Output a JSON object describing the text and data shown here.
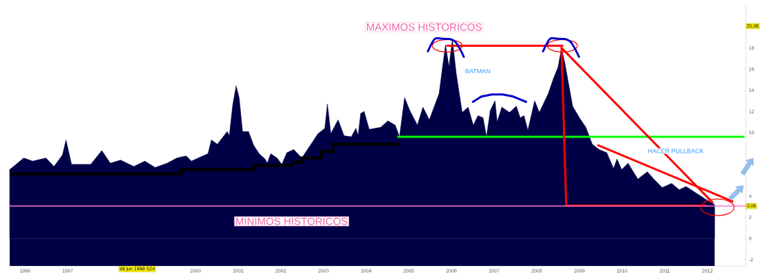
{
  "chart_data": {
    "type": "area",
    "xlim": [
      1995.64,
      2012.9
    ],
    "ylim": [
      -2.6,
      22.2
    ],
    "xticks": [
      1996,
      1997,
      2000,
      2001,
      2002,
      2003,
      2004,
      2005,
      2006,
      2007,
      2008,
      2009,
      2010,
      2011,
      2012
    ],
    "yticks": [
      -2,
      0,
      2,
      4,
      {
        "value": 6,
        "label": null
      },
      {
        "value": 8,
        "label": null
      },
      10,
      12,
      14,
      16,
      18
    ],
    "series": [
      {
        "color": "#000046",
        "x": [
          1995.64,
          1995.97,
          1996.18,
          1996.49,
          1996.68,
          1996.88,
          1996.96,
          1997.09,
          1997.32,
          1997.54,
          1997.8,
          1998.0,
          1998.24,
          1998.55,
          1998.81,
          1999.05,
          1999.33,
          1999.56,
          1999.78,
          1999.9,
          2000.06,
          2000.29,
          2000.37,
          2000.51,
          2000.74,
          2000.79,
          2000.87,
          2000.95,
          2001.02,
          2001.1,
          2001.24,
          2001.36,
          2001.49,
          2001.63,
          2001.68,
          2001.76,
          2001.91,
          2002.02,
          2002.14,
          2002.3,
          2002.49,
          2002.69,
          2002.87,
          2003.03,
          2003.09,
          2003.17,
          2003.34,
          2003.48,
          2003.65,
          2003.76,
          2003.81,
          2003.87,
          2003.95,
          2004.07,
          2004.34,
          2004.51,
          2004.68,
          2004.78,
          2004.9,
          2005.02,
          2005.2,
          2005.33,
          2005.48,
          2005.59,
          2005.71,
          2005.79,
          2005.86,
          2005.94,
          2006.02,
          2006.11,
          2006.25,
          2006.39,
          2006.51,
          2006.62,
          2006.74,
          2006.82,
          2006.91,
          2007.02,
          2007.07,
          2007.18,
          2007.36,
          2007.52,
          2007.61,
          2007.7,
          2007.79,
          2007.95,
          2008.06,
          2008.27,
          2008.39,
          2008.5,
          2008.58,
          2008.66,
          2008.84,
          2009.0,
          2009.15,
          2009.3,
          2009.46,
          2009.64,
          2009.8,
          2009.88,
          2009.99,
          2010.14,
          2010.37,
          2010.59,
          2010.77,
          2010.94,
          2011.16,
          2011.34,
          2011.5,
          2011.73,
          2011.96,
          2012.17
        ],
        "values": [
          6.5,
          7.6,
          7.3,
          7.6,
          6.8,
          7.9,
          9.3,
          7.0,
          7.0,
          7.0,
          8.3,
          7.1,
          7.4,
          6.8,
          7.3,
          6.7,
          7.1,
          7.6,
          7.8,
          7.3,
          7.6,
          8.0,
          9.3,
          8.9,
          10.1,
          9.7,
          12.6,
          14.4,
          13.3,
          10.1,
          10.1,
          8.8,
          8.0,
          7.5,
          7.1,
          8.0,
          7.6,
          7.0,
          8.1,
          8.4,
          7.6,
          8.8,
          9.9,
          10.4,
          12.7,
          9.9,
          11.2,
          9.7,
          9.6,
          10.4,
          9.7,
          11.8,
          12.0,
          10.3,
          10.5,
          11.1,
          10.7,
          9.6,
          13.3,
          12.1,
          10.7,
          12.4,
          11.2,
          12.4,
          13.7,
          16.2,
          18.3,
          16.2,
          18.8,
          15.6,
          11.9,
          12.4,
          10.7,
          11.6,
          11.4,
          9.6,
          12.1,
          13.0,
          11.0,
          12.4,
          11.9,
          12.5,
          11.4,
          11.6,
          10.2,
          13.0,
          11.9,
          13.7,
          15.1,
          16.2,
          18.0,
          16.5,
          12.5,
          11.4,
          10.5,
          8.9,
          8.4,
          8.1,
          6.6,
          7.5,
          6.5,
          7.1,
          5.6,
          6.3,
          5.5,
          4.8,
          5.2,
          4.6,
          4.9,
          4.3,
          3.7,
          3.2
        ]
      },
      {
        "type": "step",
        "color": "#000000",
        "x": [
          1995.64,
          1999.67,
          2001.37,
          2002.27,
          2002.49,
          2002.95,
          2003.22,
          2004.78
        ],
        "values": [
          6.1,
          6.5,
          6.9,
          7.2,
          7.6,
          8.2,
          8.9,
          8.9
        ]
      },
      {
        "type": "line",
        "color": "#00ff00",
        "x": [
          2004.75,
          2012.85
        ],
        "values": [
          9.6,
          9.6
        ]
      },
      {
        "type": "line",
        "color": "#ff0000",
        "marker": "circle",
        "x": [
          2005.9,
          2008.6
        ],
        "values": [
          18.2,
          18.2
        ]
      },
      {
        "type": "line",
        "color": "#ff0000",
        "x": [
          2008.58,
          2008.69,
          2011.97
        ],
        "values": [
          18.0,
          3.1,
          3.1
        ]
      },
      {
        "type": "line",
        "color": "#ff0000",
        "x": [
          2008.58,
          2012.12
        ],
        "values": [
          18.0,
          3.4
        ]
      },
      {
        "type": "line",
        "color": "#ff0000",
        "x": [
          2009.44,
          2012.59
        ],
        "values": [
          8.8,
          3.5
        ]
      },
      {
        "type": "line",
        "color": "#0000cc",
        "x": [
          2006.5,
          2006.7,
          2006.95,
          2007.2,
          2007.45,
          2007.75
        ],
        "values": [
          12.9,
          13.4,
          13.6,
          13.6,
          13.4,
          12.9
        ]
      }
    ],
    "bands": [
      {
        "axis": "y",
        "from": -2.6,
        "to": 0,
        "color": "#000046"
      }
    ],
    "ref_lines": [
      {
        "axis": "y",
        "value": 3.06,
        "label": "3,06",
        "color": "#ff77cc"
      }
    ],
    "annotations": [
      "MAXIMOS HISTORICOS",
      "BATMAN",
      "HACER PULLBACK",
      "MINIMOS HISTORICOS",
      {
        "text": "20,06",
        "y": 20.06
      },
      {
        "text": "08 jun 1998 S24",
        "x": 1998.63
      }
    ]
  }
}
